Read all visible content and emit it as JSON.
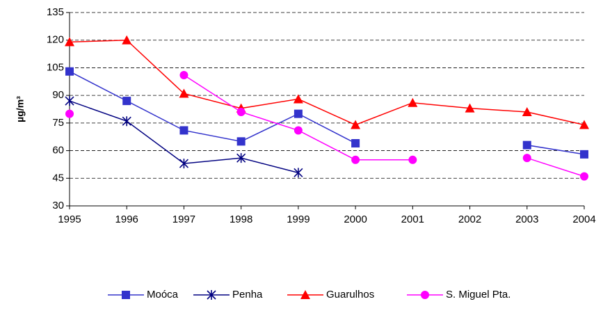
{
  "chart_data": {
    "type": "line",
    "y_label": "µg/m³",
    "x": [
      1995,
      1996,
      1997,
      1998,
      1999,
      2000,
      2001,
      2002,
      2003,
      2004
    ],
    "xlim": [
      1995,
      2004
    ],
    "xticks": [
      1995,
      1996,
      1997,
      1998,
      1999,
      2000,
      2001,
      2002,
      2003,
      2004
    ],
    "ylim": [
      30,
      135
    ],
    "yticks": [
      30,
      45,
      60,
      75,
      90,
      105,
      120,
      135
    ],
    "grid": true,
    "legend": "bottom",
    "series": [
      {
        "name": "Moóca",
        "color": "#3333cc",
        "marker": "square",
        "values": [
          103,
          87,
          71,
          65,
          80,
          64,
          null,
          null,
          63,
          58
        ]
      },
      {
        "name": "Penha",
        "color": "#000080",
        "marker": "star",
        "values": [
          87,
          76,
          53,
          56,
          48,
          null,
          null,
          null,
          null,
          null
        ]
      },
      {
        "name": "Guarulhos",
        "color": "#ff0000",
        "marker": "triangle",
        "values": [
          119,
          120,
          91,
          83,
          88,
          74,
          86,
          83,
          81,
          74
        ]
      },
      {
        "name": "S. Miguel Pta.",
        "color": "#ff00ff",
        "marker": "circle",
        "values": [
          80,
          null,
          101,
          81,
          71,
          55,
          55,
          null,
          56,
          46
        ]
      }
    ]
  }
}
